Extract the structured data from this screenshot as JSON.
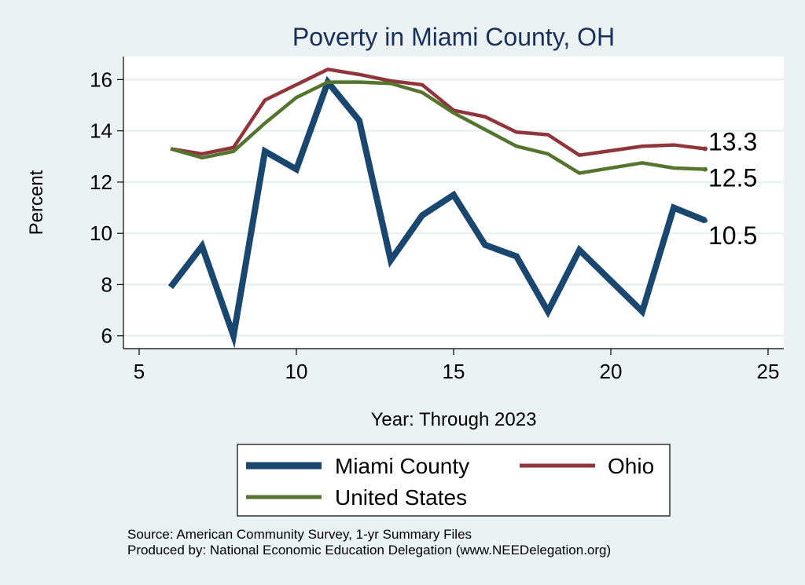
{
  "chart_data": {
    "type": "line",
    "title": "Poverty in Miami County, OH",
    "xlabel": "Year: Through 2023",
    "ylabel": "Percent",
    "xlim": [
      4.5,
      25.5
    ],
    "ylim": [
      5.5,
      16.9
    ],
    "xticks": [
      5,
      10,
      15,
      20,
      25
    ],
    "yticks": [
      6,
      8,
      10,
      12,
      14,
      16
    ],
    "grid": true,
    "x": [
      6,
      7,
      8,
      9,
      10,
      11,
      12,
      13,
      14,
      15,
      16,
      17,
      18,
      19,
      21,
      22,
      23
    ],
    "series": [
      {
        "name": "Miami County",
        "color": "#1a476f",
        "end_label": "10.5",
        "values": [
          7.9,
          9.5,
          6.0,
          13.2,
          12.5,
          15.9,
          14.4,
          8.95,
          10.7,
          11.5,
          9.55,
          9.1,
          6.95,
          9.35,
          6.95,
          11.0,
          10.5
        ]
      },
      {
        "name": "Ohio",
        "color": "#90353b",
        "end_label": "13.3",
        "values": [
          13.3,
          13.1,
          13.35,
          15.2,
          15.8,
          16.4,
          16.2,
          15.95,
          15.8,
          14.8,
          14.55,
          13.95,
          13.85,
          13.05,
          13.4,
          13.45,
          13.3
        ]
      },
      {
        "name": "United States",
        "color": "#55752f",
        "end_label": "12.5",
        "values": [
          13.3,
          12.95,
          13.2,
          14.3,
          15.3,
          15.9,
          15.9,
          15.85,
          15.5,
          14.7,
          14.05,
          13.4,
          13.1,
          12.35,
          12.75,
          12.55,
          12.5
        ]
      }
    ]
  },
  "legend": {
    "miami": "Miami County",
    "ohio": "Ohio",
    "us": "United States"
  },
  "notes": {
    "source": "Source: American Community Survey, 1-yr Summary Files",
    "produced": "Produced by: National Economic Education Delegation (www.NEEDelegation.org)"
  }
}
